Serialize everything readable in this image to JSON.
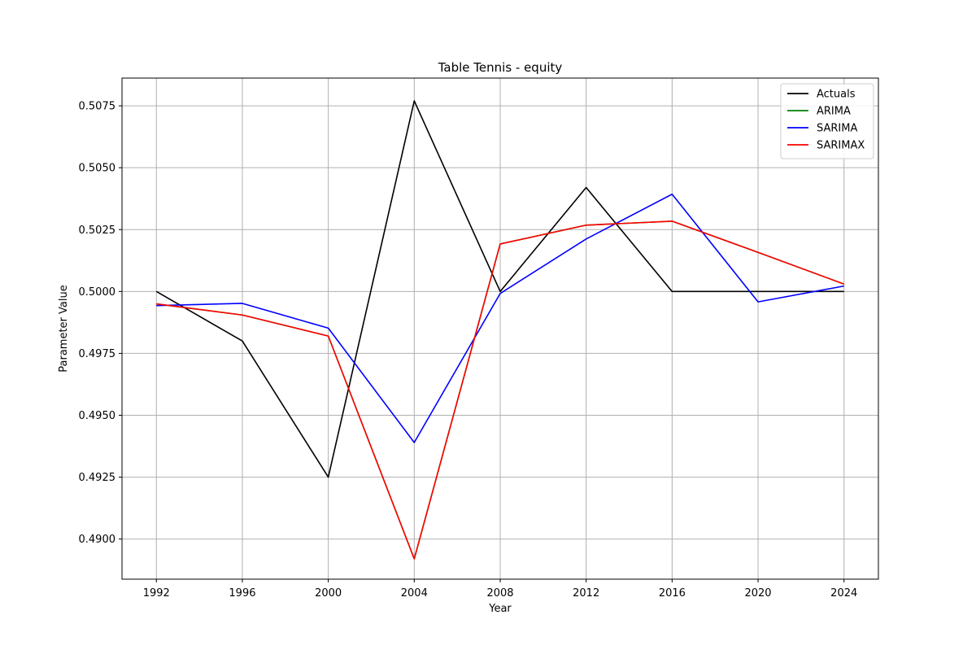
{
  "chart_data": {
    "type": "line",
    "title": "Table Tennis - equity",
    "xlabel": "Year",
    "ylabel": "Parameter Value",
    "x": [
      1992,
      1996,
      2000,
      2004,
      2008,
      2012,
      2016,
      2020,
      2024
    ],
    "x_ticks": [
      "1992",
      "1996",
      "2000",
      "2004",
      "2008",
      "2012",
      "2016",
      "2020",
      "2024"
    ],
    "y_ticks": [
      "0.4900",
      "0.4925",
      "0.4950",
      "0.4975",
      "0.5000",
      "0.5025",
      "0.5050",
      "0.5075"
    ],
    "y_tick_values": [
      0.49,
      0.4925,
      0.495,
      0.4975,
      0.5,
      0.5025,
      0.505,
      0.5075
    ],
    "xlim": [
      1990.4,
      2025.6
    ],
    "ylim": [
      0.48838,
      0.50862
    ],
    "grid": true,
    "legend_position": "top-right",
    "series": [
      {
        "name": "Actuals",
        "color": "#000000",
        "values": [
          0.5,
          0.498,
          0.4925,
          0.5077,
          0.5,
          0.5042,
          0.5,
          0.5,
          0.5
        ]
      },
      {
        "name": "ARIMA",
        "color": "#008000",
        "values": [
          0.4995,
          0.49905,
          0.4982,
          0.4892,
          0.50192,
          0.50268,
          0.50284,
          0.50158,
          0.5003
        ]
      },
      {
        "name": "SARIMA",
        "color": "#0000ff",
        "values": [
          0.49943,
          0.49952,
          0.49852,
          0.4939,
          0.49992,
          0.50212,
          0.50393,
          0.49958,
          0.50022
        ]
      },
      {
        "name": "SARIMAX",
        "color": "#ff0000",
        "values": [
          0.4995,
          0.49905,
          0.4982,
          0.4892,
          0.50192,
          0.50268,
          0.50284,
          0.50158,
          0.5003
        ]
      }
    ]
  }
}
